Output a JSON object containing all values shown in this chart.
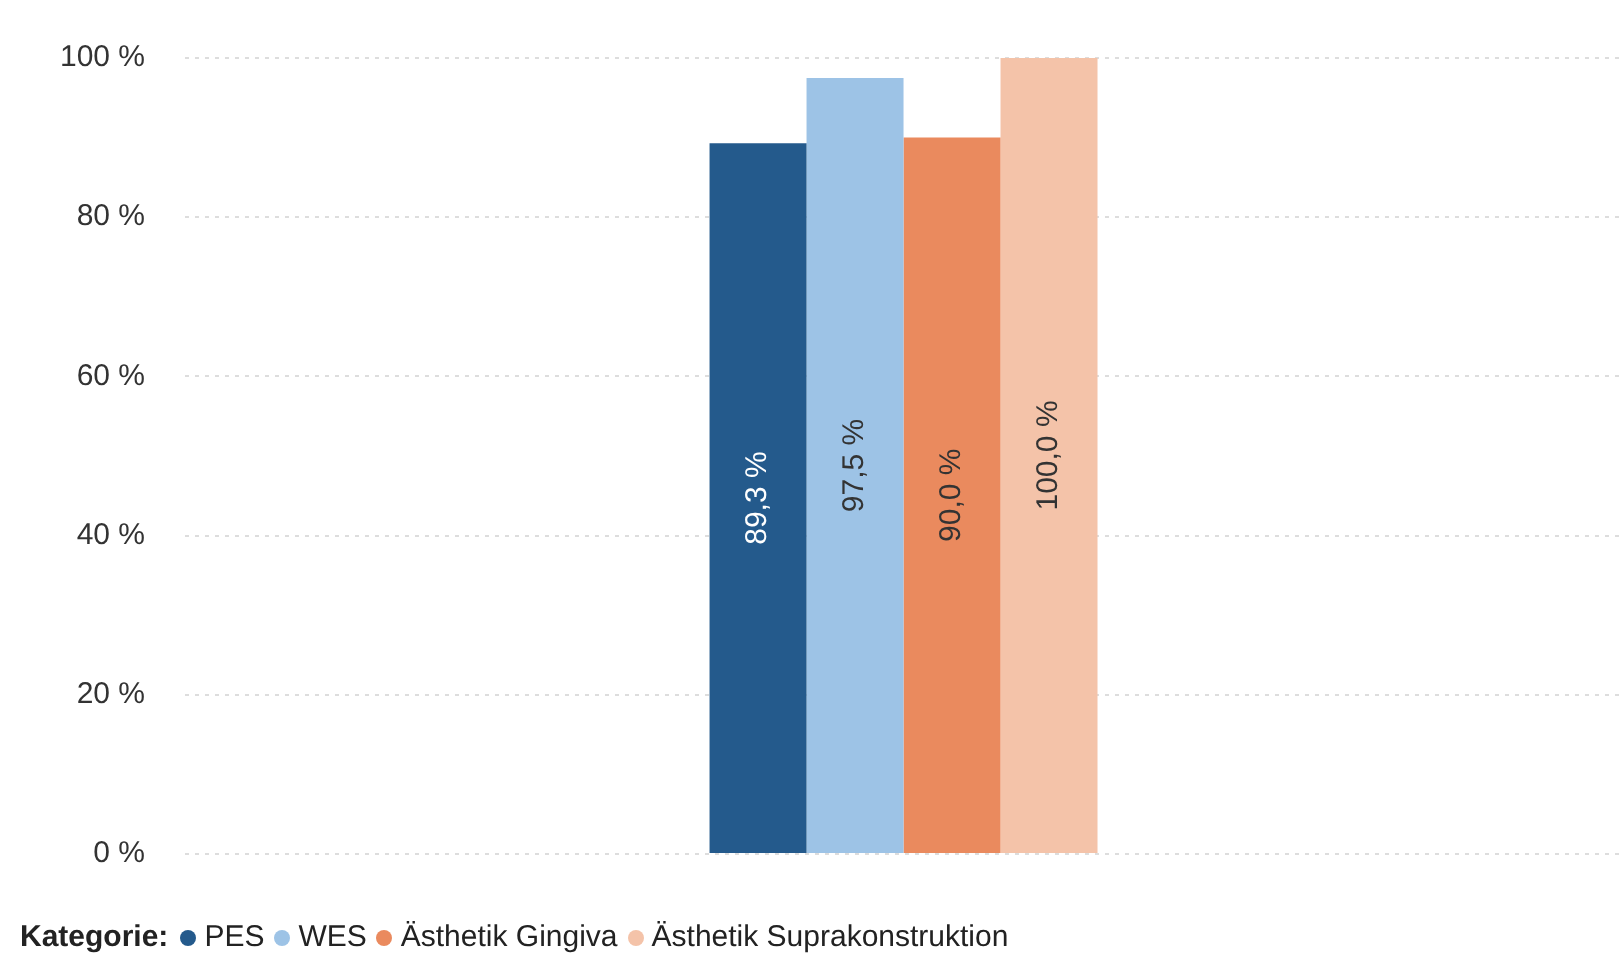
{
  "chart_data": {
    "type": "bar",
    "legend_title": "Kategorie:",
    "categories": [
      null
    ],
    "series": [
      {
        "name": "PES",
        "color": "#245a8c",
        "values": [
          89.3
        ],
        "value_labels": [
          "89,3 %"
        ]
      },
      {
        "name": "WES",
        "color": "#9dc3e6",
        "values": [
          97.5
        ],
        "value_labels": [
          "97,5 %"
        ]
      },
      {
        "name": "Ästhetik Gingiva",
        "color": "#ea8a5e",
        "values": [
          90.0
        ],
        "value_labels": [
          "90,0 %"
        ]
      },
      {
        "name": "Ästhetik Suprakonstruktion",
        "color": "#f4c3a9",
        "values": [
          100.0
        ],
        "value_labels": [
          "100,0 %"
        ]
      }
    ],
    "ylim": [
      0,
      100
    ],
    "yticks": [
      {
        "value": 0,
        "label": "0 %"
      },
      {
        "value": 20,
        "label": "20 %"
      },
      {
        "value": 40,
        "label": "40 %"
      },
      {
        "value": 60,
        "label": "60 %"
      },
      {
        "value": 80,
        "label": "80 %"
      },
      {
        "value": 100,
        "label": "100 %"
      }
    ],
    "grid": "y",
    "legend": "bottom left"
  }
}
